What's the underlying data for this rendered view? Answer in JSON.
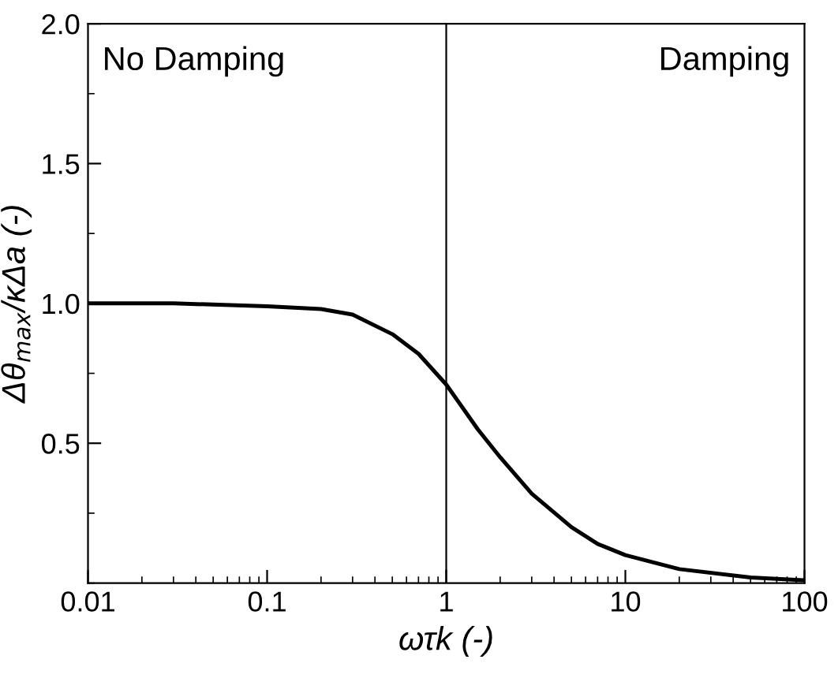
{
  "chart_data": {
    "type": "line",
    "xlabel": "ωτk (-)",
    "ylabel": "Δθ$_{max}$/κΔa (-)",
    "log": "x",
    "xlim": [
      0.01,
      100
    ],
    "xticks": [
      {
        "value": 0.01,
        "label": "0.01"
      },
      {
        "value": 0.1,
        "label": "0.1"
      },
      1,
      10,
      100
    ],
    "ylim": [
      0,
      2
    ],
    "yticks": [
      {
        "value": 0.5,
        "label": "0.5"
      },
      {
        "value": 1.0,
        "label": "1.0"
      },
      {
        "value": 1.5,
        "label": "1.5"
      },
      {
        "value": 2.0,
        "label": "2.0"
      }
    ],
    "x": [
      0.01,
      0.03,
      0.1,
      0.2,
      0.3,
      0.5,
      0.7,
      1,
      1.5,
      2,
      3,
      5,
      7,
      10,
      20,
      50,
      100
    ],
    "series": [
      {
        "color": "#000000",
        "values": [
          1.0,
          1.0,
          0.99,
          0.98,
          0.96,
          0.89,
          0.82,
          0.71,
          0.55,
          0.45,
          0.32,
          0.2,
          0.14,
          0.1,
          0.05,
          0.02,
          0.01
        ]
      }
    ],
    "ref_lines": [
      {
        "axis": "x",
        "value": 1,
        "color": "#000000"
      }
    ],
    "annotations": [
      "No Damping",
      "Damping"
    ],
    "grid": false,
    "legend": false,
    "marker": "none",
    "line_style": "solid"
  }
}
